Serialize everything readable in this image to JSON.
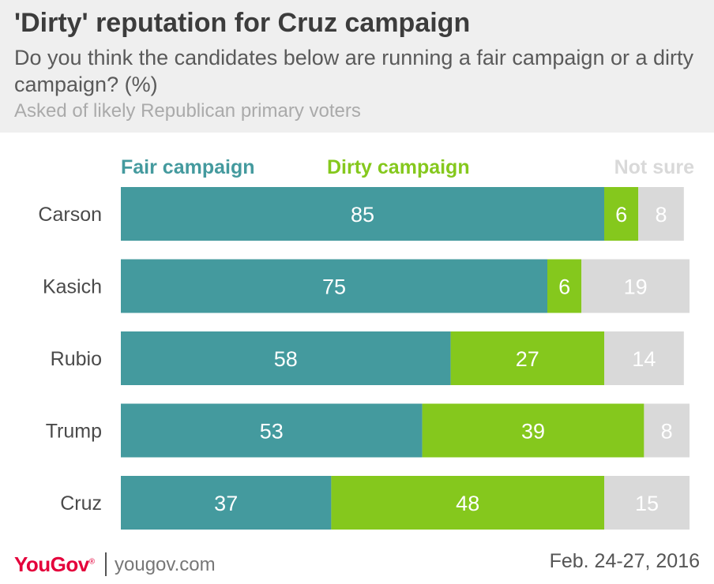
{
  "header": {
    "title": "'Dirty' reputation for Cruz campaign",
    "subtitle": "Do you think the candidates below are running a fair campaign or a dirty campaign? (%)",
    "note": "Asked of likely Republican primary voters"
  },
  "legend": {
    "fair": "Fair campaign",
    "dirty": "Dirty campaign",
    "not_sure": "Not sure"
  },
  "colors": {
    "fair": "#449a9e",
    "dirty": "#85c81d",
    "not_sure": "#d9d9d9",
    "fair_text": "#ffffff",
    "dirty_text": "#ffffff",
    "not_sure_text": "#ffffff",
    "header_bg": "#efefef",
    "brand": "#e4003b"
  },
  "chart_data": {
    "type": "bar",
    "orientation": "horizontal",
    "stacked": true,
    "categories": [
      "Carson",
      "Kasich",
      "Rubio",
      "Trump",
      "Cruz"
    ],
    "series": [
      {
        "name": "Fair campaign",
        "values": [
          85,
          75,
          58,
          53,
          37
        ]
      },
      {
        "name": "Dirty campaign",
        "values": [
          6,
          6,
          27,
          39,
          48
        ]
      },
      {
        "name": "Not sure",
        "values": [
          8,
          19,
          14,
          8,
          15
        ]
      }
    ],
    "xlim": [
      0,
      100
    ],
    "grid": false,
    "legend_position": "top"
  },
  "footer": {
    "logo": "YouGov",
    "site": "yougov.com",
    "date": "Feb. 24-27, 2016"
  }
}
